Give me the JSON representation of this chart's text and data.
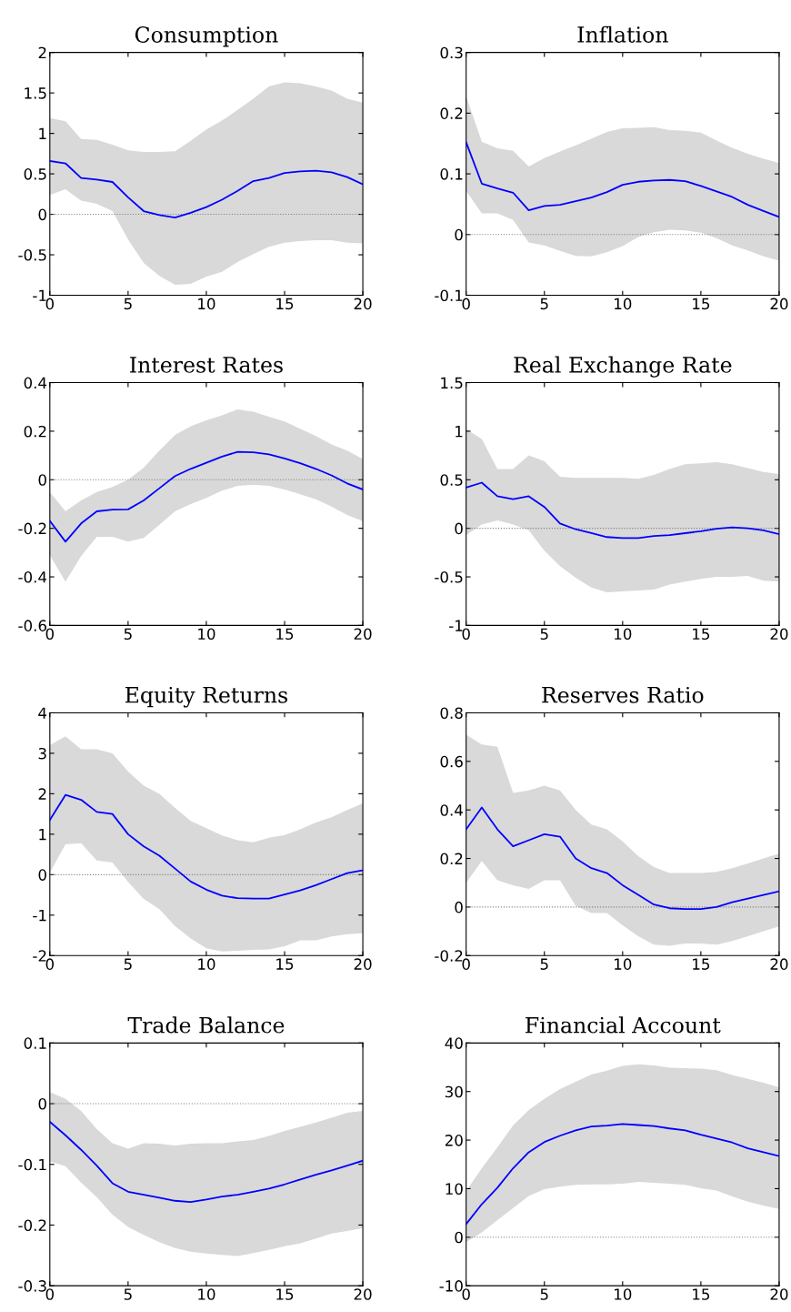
{
  "chart_data": [
    {
      "type": "line",
      "title": "Consumption",
      "x": [
        0,
        1,
        2,
        3,
        4,
        5,
        6,
        7,
        8,
        9,
        10,
        11,
        12,
        13,
        14,
        15,
        16,
        17,
        18,
        19,
        20
      ],
      "xlim": [
        0,
        20
      ],
      "xticks": [
        0,
        5,
        10,
        15,
        20
      ],
      "ylim": [
        -1,
        2
      ],
      "yticks": [
        -1,
        -0.5,
        0,
        0.5,
        1,
        1.5,
        2
      ],
      "ref_lines": [
        {
          "axis": "y",
          "value": 0,
          "color": "#808080",
          "line_style": "dotted"
        }
      ],
      "series": [
        {
          "color": "#0000ff",
          "values": [
            0.66,
            0.63,
            0.45,
            0.43,
            0.4,
            0.21,
            0.04,
            -0.01,
            -0.04,
            0.02,
            0.09,
            0.18,
            0.29,
            0.41,
            0.45,
            0.51,
            0.53,
            0.54,
            0.52,
            0.46,
            0.37
          ],
          "upper": [
            1.19,
            1.15,
            0.93,
            0.92,
            0.86,
            0.79,
            0.77,
            0.77,
            0.78,
            0.91,
            1.05,
            1.16,
            1.29,
            1.43,
            1.58,
            1.63,
            1.62,
            1.58,
            1.53,
            1.43,
            1.38
          ],
          "lower": [
            0.24,
            0.31,
            0.17,
            0.13,
            0.04,
            -0.31,
            -0.6,
            -0.76,
            -0.87,
            -0.86,
            -0.77,
            -0.71,
            -0.59,
            -0.49,
            -0.4,
            -0.35,
            -0.33,
            -0.32,
            -0.32,
            -0.35,
            -0.36
          ]
        }
      ]
    },
    {
      "type": "line",
      "title": "Inflation",
      "x": [
        0,
        1,
        2,
        3,
        4,
        5,
        6,
        7,
        8,
        9,
        10,
        11,
        12,
        13,
        14,
        15,
        16,
        17,
        18,
        19,
        20
      ],
      "xlim": [
        0,
        20
      ],
      "xticks": [
        0,
        5,
        10,
        15,
        20
      ],
      "ylim": [
        -0.1,
        0.3
      ],
      "yticks": [
        -0.1,
        0,
        0.1,
        0.2,
        0.3
      ],
      "ref_lines": [
        {
          "axis": "y",
          "value": 0,
          "color": "#808080",
          "line_style": "dotted"
        }
      ],
      "series": [
        {
          "color": "#0000ff",
          "values": [
            0.152,
            0.084,
            0.076,
            0.069,
            0.04,
            0.047,
            0.049,
            0.055,
            0.061,
            0.07,
            0.082,
            0.087,
            0.089,
            0.09,
            0.088,
            0.08,
            0.071,
            0.062,
            0.049,
            0.039,
            0.029
          ],
          "upper": [
            0.228,
            0.153,
            0.142,
            0.138,
            0.112,
            0.126,
            0.137,
            0.147,
            0.158,
            0.169,
            0.175,
            0.176,
            0.177,
            0.172,
            0.171,
            0.168,
            0.155,
            0.143,
            0.133,
            0.125,
            0.118
          ],
          "lower": [
            0.072,
            0.035,
            0.035,
            0.024,
            -0.013,
            -0.018,
            -0.027,
            -0.035,
            -0.036,
            -0.029,
            -0.019,
            -0.004,
            0.004,
            0.008,
            0.007,
            0.003,
            -0.006,
            -0.018,
            -0.026,
            -0.036,
            -0.043
          ]
        }
      ]
    },
    {
      "type": "line",
      "title": "Interest Rates",
      "x": [
        0,
        1,
        2,
        3,
        4,
        5,
        6,
        7,
        8,
        9,
        10,
        11,
        12,
        13,
        14,
        15,
        16,
        17,
        18,
        19,
        20
      ],
      "xlim": [
        0,
        20
      ],
      "xticks": [
        0,
        5,
        10,
        15,
        20
      ],
      "ylim": [
        -0.6,
        0.4
      ],
      "yticks": [
        -0.6,
        -0.4,
        -0.2,
        0,
        0.2,
        0.4
      ],
      "ref_lines": [
        {
          "axis": "y",
          "value": 0,
          "color": "#808080",
          "line_style": "dotted"
        }
      ],
      "series": [
        {
          "color": "#0000ff",
          "values": [
            -0.17,
            -0.255,
            -0.18,
            -0.13,
            -0.123,
            -0.122,
            -0.085,
            -0.035,
            0.015,
            0.045,
            0.07,
            0.095,
            0.115,
            0.113,
            0.105,
            0.088,
            0.068,
            0.045,
            0.018,
            -0.015,
            -0.04
          ],
          "upper": [
            -0.05,
            -0.13,
            -0.085,
            -0.05,
            -0.03,
            0.0,
            0.05,
            0.12,
            0.185,
            0.22,
            0.245,
            0.265,
            0.29,
            0.28,
            0.26,
            0.24,
            0.21,
            0.18,
            0.145,
            0.12,
            0.085
          ],
          "lower": [
            -0.31,
            -0.42,
            -0.315,
            -0.235,
            -0.235,
            -0.255,
            -0.24,
            -0.185,
            -0.13,
            -0.1,
            -0.075,
            -0.045,
            -0.025,
            -0.02,
            -0.025,
            -0.04,
            -0.06,
            -0.08,
            -0.11,
            -0.145,
            -0.17
          ]
        }
      ]
    },
    {
      "type": "line",
      "title": "Real Exchange Rate",
      "x": [
        0,
        1,
        2,
        3,
        4,
        5,
        6,
        7,
        8,
        9,
        10,
        11,
        12,
        13,
        14,
        15,
        16,
        17,
        18,
        19,
        20
      ],
      "xlim": [
        0,
        20
      ],
      "xticks": [
        0,
        5,
        10,
        15,
        20
      ],
      "ylim": [
        -1,
        1.5
      ],
      "yticks": [
        -1,
        -0.5,
        0,
        0.5,
        1,
        1.5
      ],
      "ref_lines": [
        {
          "axis": "y",
          "value": 0,
          "color": "#808080",
          "line_style": "dotted"
        }
      ],
      "series": [
        {
          "color": "#0000ff",
          "values": [
            0.42,
            0.47,
            0.33,
            0.3,
            0.33,
            0.22,
            0.05,
            -0.01,
            -0.05,
            -0.09,
            -0.1,
            -0.1,
            -0.08,
            -0.07,
            -0.05,
            -0.03,
            -0.005,
            0.01,
            0.0,
            -0.02,
            -0.06
          ],
          "upper": [
            1.02,
            0.92,
            0.61,
            0.61,
            0.75,
            0.69,
            0.53,
            0.52,
            0.52,
            0.52,
            0.52,
            0.51,
            0.55,
            0.61,
            0.66,
            0.67,
            0.68,
            0.66,
            0.62,
            0.58,
            0.56
          ],
          "lower": [
            -0.07,
            0.04,
            0.08,
            0.04,
            -0.02,
            -0.23,
            -0.39,
            -0.51,
            -0.61,
            -0.66,
            -0.65,
            -0.64,
            -0.63,
            -0.58,
            -0.55,
            -0.52,
            -0.5,
            -0.5,
            -0.49,
            -0.54,
            -0.55
          ]
        }
      ]
    },
    {
      "type": "line",
      "title": "Equity Returns",
      "x": [
        0,
        1,
        2,
        3,
        4,
        5,
        6,
        7,
        8,
        9,
        10,
        11,
        12,
        13,
        14,
        15,
        16,
        17,
        18,
        19,
        20
      ],
      "xlim": [
        0,
        20
      ],
      "xticks": [
        0,
        5,
        10,
        15,
        20
      ],
      "ylim": [
        -2,
        4
      ],
      "yticks": [
        -2,
        -1,
        0,
        1,
        2,
        3,
        4
      ],
      "ref_lines": [
        {
          "axis": "y",
          "value": 0,
          "color": "#808080",
          "line_style": "dotted"
        }
      ],
      "series": [
        {
          "color": "#0000ff",
          "values": [
            1.35,
            1.97,
            1.85,
            1.55,
            1.5,
            1.0,
            0.7,
            0.47,
            0.15,
            -0.17,
            -0.37,
            -0.52,
            -0.58,
            -0.59,
            -0.59,
            -0.49,
            -0.39,
            -0.26,
            -0.11,
            0.04,
            0.11
          ],
          "upper": [
            3.2,
            3.42,
            3.1,
            3.1,
            3.0,
            2.55,
            2.2,
            2.0,
            1.65,
            1.33,
            1.15,
            0.97,
            0.85,
            0.8,
            0.91,
            0.98,
            1.12,
            1.29,
            1.42,
            1.6,
            1.76
          ],
          "lower": [
            0.05,
            0.75,
            0.78,
            0.35,
            0.3,
            -0.18,
            -0.6,
            -0.85,
            -1.27,
            -1.58,
            -1.82,
            -1.9,
            -1.88,
            -1.86,
            -1.85,
            -1.77,
            -1.62,
            -1.62,
            -1.53,
            -1.47,
            -1.45
          ]
        }
      ]
    },
    {
      "type": "line",
      "title": "Reserves Ratio",
      "x": [
        0,
        1,
        2,
        3,
        4,
        5,
        6,
        7,
        8,
        9,
        10,
        11,
        12,
        13,
        14,
        15,
        16,
        17,
        18,
        19,
        20
      ],
      "xlim": [
        0,
        20
      ],
      "xticks": [
        0,
        5,
        10,
        15,
        20
      ],
      "ylim": [
        -0.2,
        0.8
      ],
      "yticks": [
        -0.2,
        0,
        0.2,
        0.4,
        0.6,
        0.8
      ],
      "ref_lines": [
        {
          "axis": "y",
          "value": 0,
          "color": "#808080",
          "line_style": "dotted"
        }
      ],
      "series": [
        {
          "color": "#0000ff",
          "values": [
            0.32,
            0.41,
            0.32,
            0.25,
            0.275,
            0.3,
            0.29,
            0.2,
            0.16,
            0.14,
            0.09,
            0.05,
            0.01,
            -0.005,
            -0.008,
            -0.008,
            0.0,
            0.02,
            0.035,
            0.05,
            0.065
          ],
          "upper": [
            0.71,
            0.67,
            0.66,
            0.47,
            0.48,
            0.5,
            0.48,
            0.4,
            0.34,
            0.32,
            0.27,
            0.21,
            0.165,
            0.14,
            0.14,
            0.14,
            0.145,
            0.16,
            0.18,
            0.2,
            0.22
          ],
          "lower": [
            0.1,
            0.19,
            0.11,
            0.09,
            0.075,
            0.11,
            0.11,
            0.005,
            -0.025,
            -0.025,
            -0.075,
            -0.12,
            -0.155,
            -0.16,
            -0.15,
            -0.15,
            -0.155,
            -0.14,
            -0.12,
            -0.1,
            -0.08
          ]
        }
      ]
    },
    {
      "type": "line",
      "title": "Trade Balance",
      "x": [
        0,
        1,
        2,
        3,
        4,
        5,
        6,
        7,
        8,
        9,
        10,
        11,
        12,
        13,
        14,
        15,
        16,
        17,
        18,
        19,
        20
      ],
      "xlim": [
        0,
        20
      ],
      "xticks": [
        0,
        5,
        10,
        15,
        20
      ],
      "ylim": [
        -0.3,
        0.1
      ],
      "yticks": [
        -0.3,
        -0.2,
        -0.1,
        0,
        0.1
      ],
      "ref_lines": [
        {
          "axis": "y",
          "value": 0,
          "color": "#808080",
          "line_style": "dotted"
        }
      ],
      "series": [
        {
          "color": "#0000ff",
          "values": [
            -0.03,
            -0.052,
            -0.076,
            -0.102,
            -0.131,
            -0.145,
            -0.15,
            -0.155,
            -0.16,
            -0.162,
            -0.158,
            -0.153,
            -0.15,
            -0.145,
            -0.14,
            -0.133,
            -0.125,
            -0.117,
            -0.11,
            -0.102,
            -0.094
          ],
          "upper": [
            0.019,
            0.008,
            -0.012,
            -0.042,
            -0.065,
            -0.074,
            -0.065,
            -0.066,
            -0.069,
            -0.066,
            -0.065,
            -0.065,
            -0.062,
            -0.06,
            -0.053,
            -0.045,
            -0.038,
            -0.031,
            -0.023,
            -0.015,
            -0.012
          ],
          "lower": [
            -0.095,
            -0.103,
            -0.13,
            -0.154,
            -0.183,
            -0.203,
            -0.216,
            -0.228,
            -0.238,
            -0.244,
            -0.247,
            -0.249,
            -0.251,
            -0.246,
            -0.241,
            -0.235,
            -0.23,
            -0.222,
            -0.214,
            -0.21,
            -0.205
          ]
        }
      ]
    },
    {
      "type": "line",
      "title": "Financial Account",
      "x": [
        0,
        1,
        2,
        3,
        4,
        5,
        6,
        7,
        8,
        9,
        10,
        11,
        12,
        13,
        14,
        15,
        16,
        17,
        18,
        19,
        20
      ],
      "xlim": [
        0,
        20
      ],
      "xticks": [
        0,
        5,
        10,
        15,
        20
      ],
      "ylim": [
        -10,
        40
      ],
      "yticks": [
        -10,
        0,
        10,
        20,
        30,
        40
      ],
      "ref_lines": [
        {
          "axis": "y",
          "value": 0,
          "color": "#808080",
          "line_style": "dotted"
        }
      ],
      "series": [
        {
          "color": "#0000ff",
          "values": [
            2.7,
            6.8,
            10.2,
            14.2,
            17.5,
            19.6,
            20.9,
            22.0,
            22.8,
            23.0,
            23.3,
            23.1,
            22.9,
            22.4,
            22.0,
            21.1,
            20.3,
            19.5,
            18.3,
            17.5,
            16.7
          ],
          "upper": [
            9.5,
            14.2,
            18.5,
            23,
            26.2,
            28.5,
            30.5,
            32,
            33.5,
            34.3,
            35.3,
            35.6,
            35.4,
            34.9,
            34.8,
            34.7,
            34.4,
            33.4,
            32.6,
            31.8,
            30.9
          ],
          "lower": [
            -1.0,
            1.0,
            3.5,
            6.0,
            8.5,
            9.9,
            10.4,
            10.8,
            10.9,
            10.9,
            11.0,
            11.4,
            11.2,
            11.0,
            10.8,
            10.1,
            9.6,
            8.4,
            7.3,
            6.5,
            5.8
          ]
        }
      ]
    }
  ]
}
